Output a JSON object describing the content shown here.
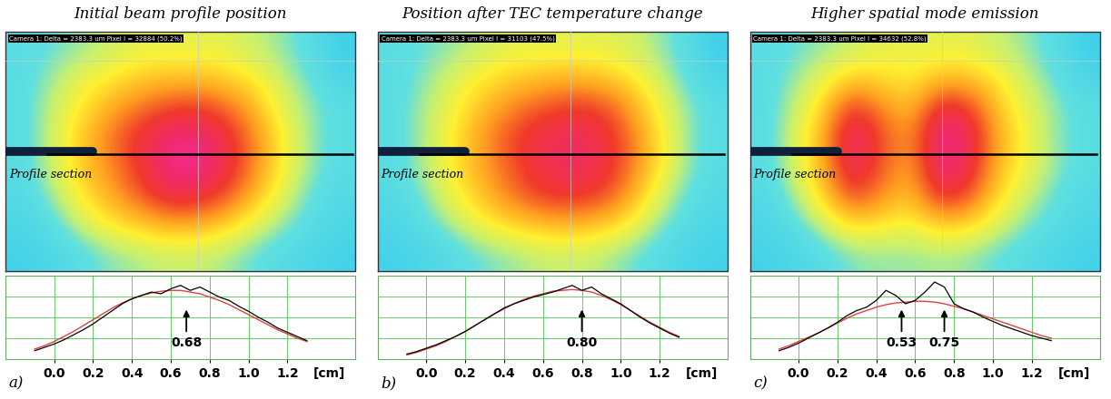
{
  "chart_data": [
    {
      "type": "line",
      "title": "Initial beam profile position",
      "panel": "a)",
      "camera_text": "Camera 1: Delta = 2383.3 um Pixel I = 32884 (50.2%)",
      "section_label": "Profile section",
      "x_label": "[cm]",
      "x": [
        -0.1,
        -0.05,
        0.0,
        0.05,
        0.1,
        0.15,
        0.2,
        0.25,
        0.3,
        0.35,
        0.4,
        0.45,
        0.5,
        0.55,
        0.6,
        0.65,
        0.7,
        0.75,
        0.8,
        0.85,
        0.9,
        0.95,
        1.0,
        1.05,
        1.1,
        1.15,
        1.2,
        1.25,
        1.3
      ],
      "values": [
        0.1,
        0.14,
        0.18,
        0.23,
        0.29,
        0.35,
        0.42,
        0.5,
        0.58,
        0.66,
        0.72,
        0.76,
        0.8,
        0.78,
        0.84,
        0.88,
        0.82,
        0.86,
        0.8,
        0.74,
        0.7,
        0.63,
        0.57,
        0.5,
        0.44,
        0.37,
        0.32,
        0.27,
        0.22
      ],
      "fit": [
        0.12,
        0.16,
        0.21,
        0.27,
        0.33,
        0.4,
        0.47,
        0.54,
        0.61,
        0.67,
        0.72,
        0.76,
        0.79,
        0.81,
        0.82,
        0.82,
        0.8,
        0.78,
        0.74,
        0.7,
        0.65,
        0.59,
        0.53,
        0.47,
        0.41,
        0.35,
        0.3,
        0.25,
        0.21
      ],
      "color": "#000000",
      "xlim": [
        -0.25,
        1.55
      ],
      "xticks": [
        {
          "value": 0,
          "label": "0.0"
        },
        {
          "value": 0.2,
          "label": "0.2"
        },
        {
          "value": 0.4,
          "label": "0.4"
        },
        {
          "value": 0.6,
          "label": "0.6"
        },
        {
          "value": 0.8,
          "label": "0.8"
        },
        {
          "value": 1,
          "label": "1.0"
        },
        {
          "value": 1.2,
          "label": "1.2"
        }
      ],
      "ylim": [
        0,
        1
      ],
      "yticks": [
        0,
        0.25,
        0.5,
        0.75,
        1
      ],
      "grid": true,
      "tick_labels": "x",
      "annotations": [
        {
          "x": 0.68,
          "text": "0.68"
        }
      ],
      "image_range": [
        0,
        1
      ],
      "image": [
        [
          0.3,
          0.35,
          0.4,
          0.45,
          0.5,
          0.5,
          0.5,
          0.5,
          0.45,
          0.4,
          0.3,
          0.1
        ],
        [
          0.3,
          0.4,
          0.5,
          0.55,
          0.6,
          0.62,
          0.62,
          0.6,
          0.55,
          0.45,
          0.35,
          0.2
        ],
        [
          0.3,
          0.45,
          0.55,
          0.65,
          0.72,
          0.78,
          0.8,
          0.75,
          0.65,
          0.5,
          0.4,
          0.3
        ],
        [
          0.3,
          0.45,
          0.6,
          0.72,
          0.82,
          0.9,
          0.92,
          0.85,
          0.72,
          0.55,
          0.4,
          0.3
        ],
        [
          0.3,
          0.45,
          0.6,
          0.7,
          0.8,
          0.92,
          0.95,
          0.86,
          0.72,
          0.55,
          0.4,
          0.3
        ],
        [
          0.25,
          0.4,
          0.55,
          0.65,
          0.75,
          0.85,
          0.85,
          0.78,
          0.65,
          0.5,
          0.35,
          0.25
        ],
        [
          0.2,
          0.3,
          0.45,
          0.55,
          0.6,
          0.65,
          0.65,
          0.6,
          0.5,
          0.4,
          0.3,
          0.2
        ],
        [
          0.15,
          0.2,
          0.3,
          0.38,
          0.42,
          0.45,
          0.45,
          0.42,
          0.35,
          0.28,
          0.2,
          0.15
        ]
      ]
    },
    {
      "type": "line",
      "title": "Position after TEC temperature change",
      "panel": "b)",
      "camera_text": "Camera 1: Delta = 2383.3 um Pixel I = 31103 (47.5%)",
      "section_label": "Profile section",
      "x_label": "[cm]",
      "x": [
        -0.1,
        -0.05,
        0.0,
        0.05,
        0.1,
        0.15,
        0.2,
        0.25,
        0.3,
        0.35,
        0.4,
        0.45,
        0.5,
        0.55,
        0.6,
        0.65,
        0.7,
        0.75,
        0.8,
        0.85,
        0.9,
        0.95,
        1.0,
        1.05,
        1.1,
        1.15,
        1.2,
        1.25,
        1.3
      ],
      "values": [
        0.06,
        0.09,
        0.13,
        0.17,
        0.22,
        0.27,
        0.33,
        0.4,
        0.47,
        0.54,
        0.61,
        0.66,
        0.7,
        0.74,
        0.77,
        0.8,
        0.84,
        0.88,
        0.82,
        0.86,
        0.78,
        0.72,
        0.66,
        0.58,
        0.5,
        0.43,
        0.37,
        0.31,
        0.26
      ],
      "fit": [
        0.05,
        0.08,
        0.12,
        0.16,
        0.21,
        0.27,
        0.33,
        0.4,
        0.47,
        0.54,
        0.6,
        0.66,
        0.71,
        0.75,
        0.78,
        0.81,
        0.82,
        0.83,
        0.82,
        0.8,
        0.76,
        0.71,
        0.65,
        0.58,
        0.51,
        0.44,
        0.38,
        0.32,
        0.27
      ],
      "color": "#000000",
      "xlim": [
        -0.25,
        1.55
      ],
      "xticks": [
        {
          "value": 0,
          "label": "0.0"
        },
        {
          "value": 0.2,
          "label": "0.2"
        },
        {
          "value": 0.4,
          "label": "0.4"
        },
        {
          "value": 0.6,
          "label": "0.6"
        },
        {
          "value": 0.8,
          "label": "0.8"
        },
        {
          "value": 1,
          "label": "1.0"
        },
        {
          "value": 1.2,
          "label": "1.2"
        }
      ],
      "ylim": [
        0,
        1
      ],
      "yticks": [
        0,
        0.25,
        0.5,
        0.75,
        1
      ],
      "grid": true,
      "tick_labels": "x",
      "annotations": [
        {
          "x": 0.8,
          "text": "0.80"
        }
      ],
      "image_range": [
        0,
        1
      ],
      "image": [
        [
          0.3,
          0.35,
          0.4,
          0.45,
          0.5,
          0.5,
          0.5,
          0.5,
          0.48,
          0.42,
          0.32,
          0.1
        ],
        [
          0.3,
          0.38,
          0.48,
          0.55,
          0.6,
          0.62,
          0.64,
          0.62,
          0.58,
          0.48,
          0.36,
          0.2
        ],
        [
          0.3,
          0.42,
          0.52,
          0.62,
          0.7,
          0.76,
          0.8,
          0.8,
          0.7,
          0.55,
          0.42,
          0.3
        ],
        [
          0.3,
          0.42,
          0.55,
          0.68,
          0.78,
          0.85,
          0.88,
          0.86,
          0.76,
          0.6,
          0.42,
          0.3
        ],
        [
          0.3,
          0.42,
          0.55,
          0.66,
          0.76,
          0.84,
          0.88,
          0.86,
          0.76,
          0.6,
          0.42,
          0.3
        ],
        [
          0.25,
          0.38,
          0.52,
          0.62,
          0.72,
          0.8,
          0.82,
          0.8,
          0.7,
          0.52,
          0.36,
          0.25
        ],
        [
          0.2,
          0.3,
          0.42,
          0.52,
          0.58,
          0.62,
          0.64,
          0.62,
          0.55,
          0.42,
          0.3,
          0.2
        ],
        [
          0.15,
          0.2,
          0.28,
          0.36,
          0.4,
          0.44,
          0.45,
          0.44,
          0.38,
          0.3,
          0.2,
          0.15
        ]
      ]
    },
    {
      "type": "line",
      "title": "Higher spatial mode emission",
      "panel": "c)",
      "camera_text": "Camera 1: Delta = 2383.3 um Pixel I = 34632 (52.8%)",
      "section_label": "Profile section",
      "x_label": "[cm]",
      "x": [
        -0.1,
        -0.05,
        0.0,
        0.05,
        0.1,
        0.15,
        0.2,
        0.25,
        0.3,
        0.35,
        0.4,
        0.45,
        0.5,
        0.55,
        0.6,
        0.65,
        0.7,
        0.75,
        0.8,
        0.85,
        0.9,
        0.95,
        1.0,
        1.05,
        1.1,
        1.15,
        1.2,
        1.25,
        1.3
      ],
      "values": [
        0.1,
        0.14,
        0.19,
        0.25,
        0.31,
        0.37,
        0.44,
        0.52,
        0.58,
        0.62,
        0.7,
        0.82,
        0.76,
        0.66,
        0.7,
        0.8,
        0.92,
        0.86,
        0.66,
        0.6,
        0.56,
        0.5,
        0.45,
        0.4,
        0.36,
        0.32,
        0.28,
        0.25,
        0.22
      ],
      "fit": [
        0.12,
        0.16,
        0.21,
        0.26,
        0.31,
        0.37,
        0.43,
        0.49,
        0.54,
        0.58,
        0.62,
        0.65,
        0.67,
        0.68,
        0.69,
        0.69,
        0.68,
        0.66,
        0.63,
        0.6,
        0.56,
        0.52,
        0.48,
        0.44,
        0.4,
        0.36,
        0.32,
        0.28,
        0.25
      ],
      "color": "#000000",
      "xlim": [
        -0.25,
        1.55
      ],
      "xticks": [
        {
          "value": 0,
          "label": "0.0"
        },
        {
          "value": 0.2,
          "label": "0.2"
        },
        {
          "value": 0.4,
          "label": "0.4"
        },
        {
          "value": 0.6,
          "label": "0.6"
        },
        {
          "value": 0.8,
          "label": "0.8"
        },
        {
          "value": 1,
          "label": "1.0"
        },
        {
          "value": 1.2,
          "label": "1.2"
        }
      ],
      "ylim": [
        0,
        1
      ],
      "yticks": [
        0,
        0.25,
        0.5,
        0.75,
        1
      ],
      "grid": true,
      "tick_labels": "x",
      "annotations": [
        {
          "x": 0.53,
          "text": "0.53"
        },
        {
          "x": 0.75,
          "text": "0.75"
        }
      ],
      "image_range": [
        0,
        1
      ],
      "image": [
        [
          0.3,
          0.35,
          0.4,
          0.45,
          0.5,
          0.5,
          0.5,
          0.5,
          0.45,
          0.4,
          0.3,
          0.1
        ],
        [
          0.3,
          0.4,
          0.5,
          0.6,
          0.58,
          0.55,
          0.62,
          0.62,
          0.55,
          0.45,
          0.35,
          0.2
        ],
        [
          0.3,
          0.45,
          0.6,
          0.82,
          0.7,
          0.62,
          0.85,
          0.8,
          0.62,
          0.5,
          0.4,
          0.3
        ],
        [
          0.3,
          0.48,
          0.66,
          0.92,
          0.78,
          0.68,
          0.95,
          0.88,
          0.66,
          0.52,
          0.4,
          0.3
        ],
        [
          0.3,
          0.48,
          0.66,
          0.9,
          0.76,
          0.66,
          0.93,
          0.86,
          0.64,
          0.52,
          0.4,
          0.3
        ],
        [
          0.25,
          0.42,
          0.6,
          0.8,
          0.7,
          0.62,
          0.84,
          0.78,
          0.58,
          0.46,
          0.35,
          0.25
        ],
        [
          0.2,
          0.32,
          0.46,
          0.58,
          0.55,
          0.52,
          0.6,
          0.58,
          0.48,
          0.38,
          0.3,
          0.2
        ],
        [
          0.15,
          0.2,
          0.3,
          0.38,
          0.4,
          0.4,
          0.42,
          0.4,
          0.34,
          0.28,
          0.2,
          0.15
        ]
      ]
    }
  ]
}
